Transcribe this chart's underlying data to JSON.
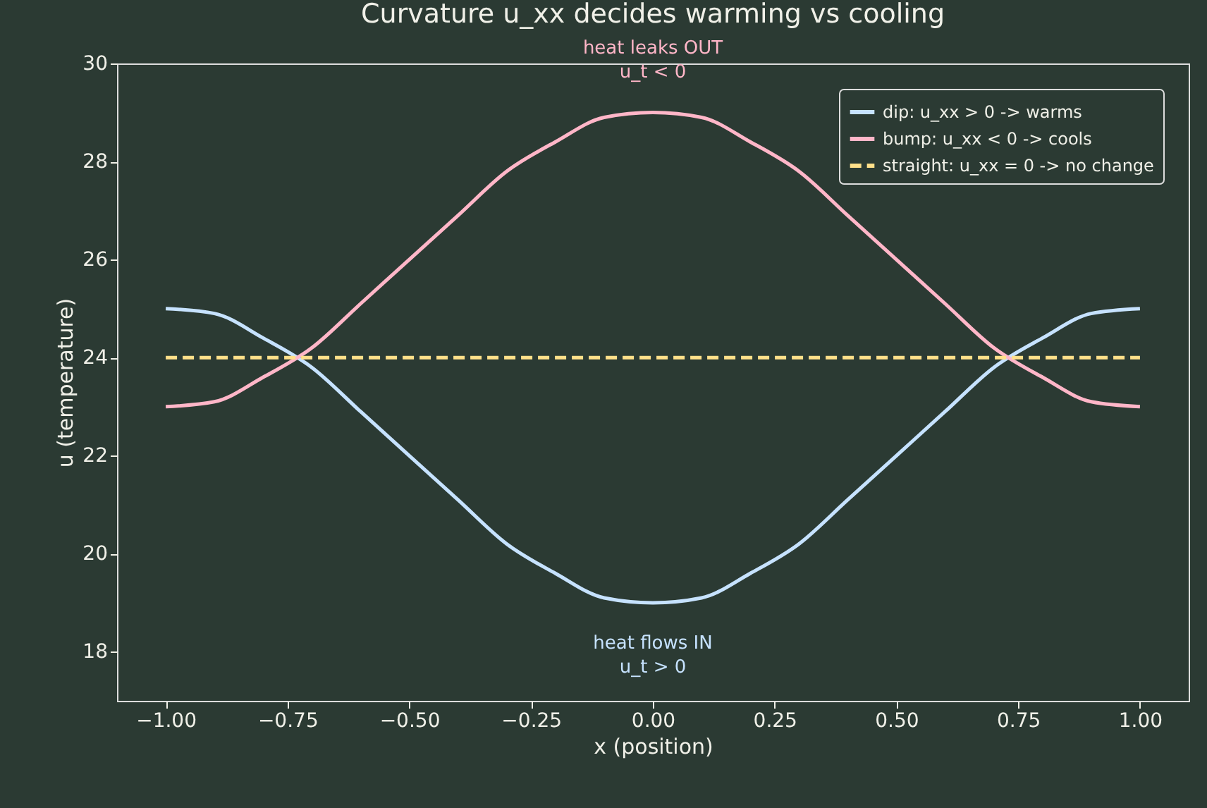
{
  "chart_data": {
    "type": "line",
    "title": "Curvature u_xx decides warming vs cooling",
    "xlabel": "x  (position)",
    "ylabel": "u  (temperature)",
    "x": [
      -1,
      -0.9,
      -0.8,
      -0.7,
      -0.6,
      -0.5,
      -0.4,
      -0.3,
      -0.2,
      -0.1,
      0,
      0.1,
      0.2,
      0.3,
      0.4,
      0.5,
      0.6,
      0.7,
      0.8,
      0.9,
      1
    ],
    "series": [
      {
        "name": "dip: u_xx > 0  -> warms",
        "color": "#c6e2ff",
        "line_style": "solid",
        "values": [
          25,
          24.9,
          24.4,
          23.8,
          22.9,
          22,
          21.1,
          20.2,
          19.6,
          19.1,
          19,
          19.1,
          19.6,
          20.2,
          21.1,
          22,
          22.9,
          23.8,
          24.4,
          24.9,
          25
        ]
      },
      {
        "name": "bump: u_xx < 0 -> cools",
        "color": "#ffb6c8",
        "line_style": "solid",
        "values": [
          23,
          23.1,
          23.6,
          24.2,
          25.1,
          26,
          26.9,
          27.8,
          28.4,
          28.9,
          29,
          28.9,
          28.4,
          27.8,
          26.9,
          26,
          25.1,
          24.2,
          23.6,
          23.1,
          23
        ]
      },
      {
        "name": "straight: u_xx = 0 -> no change",
        "color": "#ffe08a",
        "line_style": "dashed",
        "values": [
          24,
          24,
          24,
          24,
          24,
          24,
          24,
          24,
          24,
          24,
          24,
          24,
          24,
          24,
          24,
          24,
          24,
          24,
          24,
          24,
          24
        ]
      }
    ],
    "annotations": [
      "heat flows IN\nu_t > 0",
      "heat leaks OUT\nu_t < 0"
    ],
    "xlim": [
      -1.1,
      1.1
    ],
    "ylim": [
      17,
      30
    ],
    "xticks": [
      {
        "value": -1,
        "label": "−1.00"
      },
      {
        "value": -0.75,
        "label": "−0.75"
      },
      {
        "value": -0.5,
        "label": "−0.50"
      },
      {
        "value": -0.25,
        "label": "−0.25"
      },
      {
        "value": 0,
        "label": "0.00"
      },
      {
        "value": 0.25,
        "label": "0.25"
      },
      {
        "value": 0.5,
        "label": "0.50"
      },
      {
        "value": 0.75,
        "label": "0.75"
      },
      {
        "value": 1,
        "label": "1.00"
      }
    ],
    "yticks": [
      18,
      20,
      22,
      24,
      26,
      28,
      30
    ],
    "legend": "top right",
    "grid": false
  }
}
